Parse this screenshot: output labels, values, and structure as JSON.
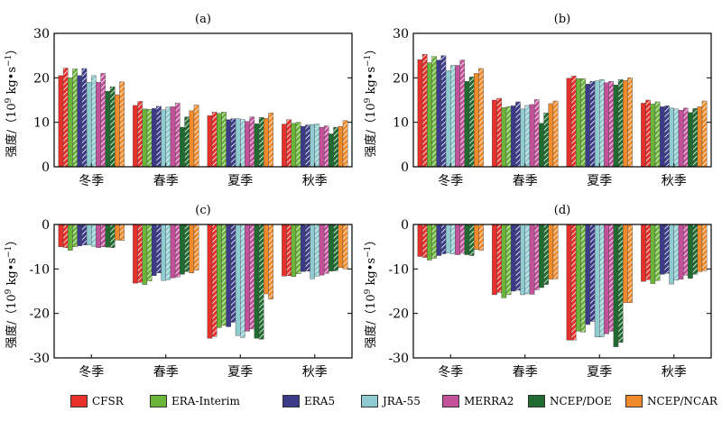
{
  "legend": {
    "items": [
      {
        "label": "CFSR",
        "color": "#e8302a"
      },
      {
        "label": "ERA-Interim",
        "color": "#6ab43a"
      },
      {
        "label": "ERA5",
        "color": "#3b3b8a"
      },
      {
        "label": "JRA-55",
        "color": "#8fcbd0"
      },
      {
        "label": "MERRA2",
        "color": "#c2519a"
      },
      {
        "label": "NCEP/DOE",
        "color": "#1f6b30"
      },
      {
        "label": "NCEP/NCAR",
        "color": "#f08a2a"
      }
    ]
  },
  "ylabel_text": "强度/（10",
  "ylabel_exp": "9",
  "ylabel_unit": " kg•s",
  "ylabel_unit_exp": "−1",
  "ylabel_close": "）",
  "chart_data": [
    {
      "panel": "(a)",
      "type": "bar",
      "categories": [
        "冬季",
        "春季",
        "夏季",
        "秋季"
      ],
      "ylabel": "强度/（10⁹ kg•s⁻¹）",
      "ylim": [
        0,
        30
      ],
      "yticks": [
        "0",
        "10",
        "20",
        "30"
      ],
      "series": [
        {
          "name": "CFSR",
          "values": [
            20.5,
            13.8,
            11.5,
            9.6
          ],
          "hatched_values": [
            22.2,
            14.7,
            12.3,
            10.6
          ]
        },
        {
          "name": "ERA-Interim",
          "values": [
            20.0,
            13.0,
            12.0,
            9.8
          ],
          "hatched_values": [
            22.0,
            12.9,
            12.3,
            10.0
          ]
        },
        {
          "name": "ERA5",
          "values": [
            20.5,
            13.1,
            10.6,
            9.1
          ],
          "hatched_values": [
            22.1,
            13.6,
            10.8,
            9.4
          ]
        },
        {
          "name": "JRA-55",
          "values": [
            19.0,
            12.8,
            10.8,
            9.5
          ],
          "hatched_values": [
            20.5,
            13.4,
            10.6,
            9.6
          ]
        },
        {
          "name": "MERRA2",
          "values": [
            19.0,
            13.5,
            10.2,
            8.9
          ],
          "hatched_values": [
            21.0,
            14.3,
            11.2,
            9.2
          ]
        },
        {
          "name": "NCEP/DOE",
          "values": [
            17.0,
            8.9,
            9.7,
            7.4
          ],
          "hatched_values": [
            18.0,
            11.2,
            11.1,
            8.9
          ]
        },
        {
          "name": "NCEP/NCAR",
          "values": [
            16.2,
            12.6,
            10.9,
            9.1
          ],
          "hatched_values": [
            19.1,
            13.9,
            12.1,
            10.4
          ]
        }
      ]
    },
    {
      "panel": "(b)",
      "type": "bar",
      "categories": [
        "冬季",
        "春季",
        "夏季",
        "秋季"
      ],
      "ylabel": "强度/（10⁹ kg•s⁻¹）",
      "ylim": [
        0,
        30
      ],
      "yticks": [
        "0",
        "10",
        "20",
        "30"
      ],
      "series": [
        {
          "name": "CFSR",
          "values": [
            24.1,
            15.0,
            19.9,
            14.3
          ],
          "hatched_values": [
            25.3,
            15.4,
            20.4,
            15.0
          ]
        },
        {
          "name": "ERA-Interim",
          "values": [
            23.4,
            13.3,
            19.8,
            14.1
          ],
          "hatched_values": [
            24.8,
            13.5,
            19.8,
            14.6
          ]
        },
        {
          "name": "ERA5",
          "values": [
            24.0,
            13.7,
            18.6,
            13.5
          ],
          "hatched_values": [
            25.0,
            14.6,
            19.2,
            13.7
          ]
        },
        {
          "name": "JRA-55",
          "values": [
            21.6,
            13.0,
            19.3,
            13.2
          ],
          "hatched_values": [
            22.8,
            13.8,
            19.6,
            13.0
          ]
        },
        {
          "name": "MERRA2",
          "values": [
            22.8,
            14.0,
            18.9,
            12.7
          ],
          "hatched_values": [
            24.0,
            15.1,
            19.2,
            13.2
          ]
        },
        {
          "name": "NCEP/DOE",
          "values": [
            19.2,
            9.8,
            18.4,
            12.2
          ],
          "hatched_values": [
            20.2,
            12.1,
            19.6,
            13.1
          ]
        },
        {
          "name": "NCEP/NCAR",
          "values": [
            21.0,
            14.2,
            19.4,
            13.5
          ],
          "hatched_values": [
            22.1,
            14.8,
            20.0,
            14.8
          ]
        }
      ]
    },
    {
      "panel": "(c)",
      "type": "bar",
      "categories": [
        "冬季",
        "春季",
        "夏季",
        "秋季"
      ],
      "ylabel": "强度/（10⁹ kg•s⁻¹）",
      "ylim": [
        -30,
        0
      ],
      "yticks": [
        "0",
        "-10",
        "-20",
        "-30"
      ],
      "series": [
        {
          "name": "CFSR",
          "values": [
            -5.0,
            -13.2,
            -25.6,
            -11.6
          ],
          "hatched_values": [
            -5.2,
            -13.0,
            -25.2,
            -11.5
          ]
        },
        {
          "name": "ERA-Interim",
          "values": [
            -5.8,
            -13.5,
            -23.2,
            -11.7
          ],
          "hatched_values": [
            -5.0,
            -12.7,
            -22.7,
            -11.1
          ]
        },
        {
          "name": "ERA5",
          "values": [
            -4.8,
            -11.5,
            -23.0,
            -10.6
          ],
          "hatched_values": [
            -4.6,
            -10.9,
            -22.0,
            -10.5
          ]
        },
        {
          "name": "JRA-55",
          "values": [
            -4.6,
            -12.6,
            -25.0,
            -12.2
          ],
          "hatched_values": [
            -4.9,
            -12.4,
            -25.4,
            -11.6
          ]
        },
        {
          "name": "MERRA2",
          "values": [
            -5.2,
            -12.0,
            -24.0,
            -11.4
          ],
          "hatched_values": [
            -5.0,
            -11.8,
            -23.5,
            -11.0
          ]
        },
        {
          "name": "NCEP/DOE",
          "values": [
            -5.1,
            -11.2,
            -25.6,
            -10.5
          ],
          "hatched_values": [
            -5.2,
            -10.6,
            -25.8,
            -10.4
          ]
        },
        {
          "name": "NCEP/NCAR",
          "values": [
            -3.5,
            -10.9,
            -15.6,
            -9.7
          ],
          "hatched_values": [
            -3.6,
            -10.3,
            -16.8,
            -10.0
          ]
        }
      ]
    },
    {
      "panel": "(d)",
      "type": "bar",
      "categories": [
        "冬季",
        "春季",
        "夏季",
        "秋季"
      ],
      "ylabel": "强度/（10⁹ kg•s⁻¹）",
      "ylim": [
        -30,
        0
      ],
      "yticks": [
        "0",
        "-10",
        "-20",
        "-30"
      ],
      "series": [
        {
          "name": "CFSR",
          "values": [
            -7.2,
            -15.8,
            -26.0,
            -12.8
          ],
          "hatched_values": [
            -7.4,
            -15.3,
            -26.0,
            -12.4
          ]
        },
        {
          "name": "ERA-Interim",
          "values": [
            -8.0,
            -16.5,
            -24.0,
            -13.3
          ],
          "hatched_values": [
            -7.6,
            -15.8,
            -24.2,
            -12.6
          ]
        },
        {
          "name": "ERA5",
          "values": [
            -7.0,
            -15.0,
            -22.5,
            -11.2
          ],
          "hatched_values": [
            -6.6,
            -14.8,
            -21.8,
            -11.0
          ]
        },
        {
          "name": "JRA-55",
          "values": [
            -6.4,
            -15.8,
            -25.3,
            -13.4
          ],
          "hatched_values": [
            -6.6,
            -15.6,
            -25.3,
            -12.5
          ]
        },
        {
          "name": "MERRA2",
          "values": [
            -6.8,
            -15.7,
            -24.6,
            -12.3
          ],
          "hatched_values": [
            -6.5,
            -14.7,
            -24.0,
            -11.4
          ]
        },
        {
          "name": "NCEP/DOE",
          "values": [
            -6.8,
            -14.2,
            -27.5,
            -12.1
          ],
          "hatched_values": [
            -7.0,
            -13.5,
            -26.5,
            -11.2
          ]
        },
        {
          "name": "NCEP/NCAR",
          "values": [
            -5.6,
            -12.3,
            -17.6,
            -10.6
          ],
          "hatched_values": [
            -5.8,
            -12.2,
            -17.6,
            -10.4
          ]
        }
      ]
    }
  ]
}
